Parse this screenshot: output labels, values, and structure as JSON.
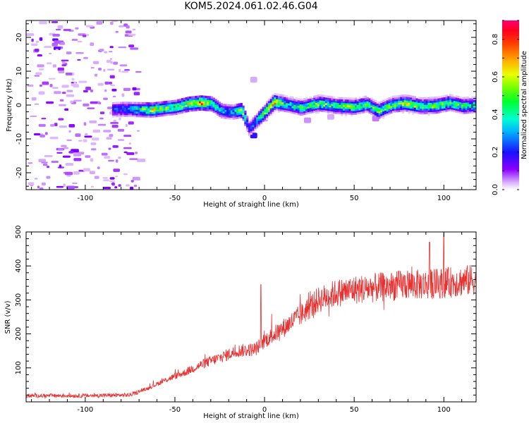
{
  "title": "KOM5.2024.061.02.46.G04",
  "chart_data": [
    {
      "type": "heatmap",
      "xlabel": "Height of straight line (km)",
      "ylabel": "Frequency (Hz)",
      "xlim": [
        -133,
        118
      ],
      "ylim": [
        -25,
        25
      ],
      "x_ticks": [
        -100,
        -50,
        0,
        50,
        100
      ],
      "y_ticks": [
        -20,
        -10,
        0,
        10,
        20
      ],
      "colorbar": {
        "label": "Normalized spectral amplitude",
        "range": [
          0,
          0.9
        ],
        "ticks": [
          0.0,
          0.2,
          0.4,
          0.6,
          0.8
        ]
      },
      "ridge": [
        {
          "x": -85,
          "freq": -1.3,
          "amp": 0.25
        },
        {
          "x": -78,
          "freq": -1.2,
          "amp": 0.3
        },
        {
          "x": -70,
          "freq": -1.3,
          "amp": 0.45
        },
        {
          "x": -63,
          "freq": -1.4,
          "amp": 0.65
        },
        {
          "x": -57,
          "freq": -1.0,
          "amp": 0.55
        },
        {
          "x": -50,
          "freq": -0.6,
          "amp": 0.5
        },
        {
          "x": -43,
          "freq": 0.3,
          "amp": 0.6
        },
        {
          "x": -36,
          "freq": 0.7,
          "amp": 0.85
        },
        {
          "x": -30,
          "freq": 0.4,
          "amp": 0.5
        },
        {
          "x": -24,
          "freq": -1.8,
          "amp": 0.35
        },
        {
          "x": -18,
          "freq": -2.0,
          "amp": 0.3
        },
        {
          "x": -13,
          "freq": -1.5,
          "amp": 0.7
        },
        {
          "x": -9,
          "freq": -7.0,
          "amp": 0.2
        },
        {
          "x": 5,
          "freq": 0.9,
          "amp": 0.75
        },
        {
          "x": 12,
          "freq": 0.2,
          "amp": 0.4
        },
        {
          "x": 20,
          "freq": -0.8,
          "amp": 0.45
        },
        {
          "x": 30,
          "freq": 0.5,
          "amp": 0.55
        },
        {
          "x": 40,
          "freq": -0.3,
          "amp": 0.5
        },
        {
          "x": 50,
          "freq": -0.5,
          "amp": 0.55
        },
        {
          "x": 57,
          "freq": 0.2,
          "amp": 0.45
        },
        {
          "x": 63,
          "freq": -1.8,
          "amp": 0.55
        },
        {
          "x": 71,
          "freq": 0.1,
          "amp": 0.5
        },
        {
          "x": 78,
          "freq": 0.5,
          "amp": 0.6
        },
        {
          "x": 87,
          "freq": -0.4,
          "amp": 0.5
        },
        {
          "x": 95,
          "freq": -0.2,
          "amp": 0.55
        },
        {
          "x": 103,
          "freq": 0.6,
          "amp": 0.5
        },
        {
          "x": 110,
          "freq": -0.3,
          "amp": 0.5
        },
        {
          "x": 117,
          "freq": 0.0,
          "amp": 0.4
        }
      ]
    },
    {
      "type": "line",
      "xlabel": "Height of straight line (km)",
      "ylabel": "SNR (v/v)",
      "xlim": [
        -133,
        118
      ],
      "ylim": [
        0,
        500
      ],
      "x_ticks": [
        -100,
        -50,
        0,
        50,
        100
      ],
      "y_ticks": [
        100,
        200,
        300,
        400,
        500
      ],
      "color": "#e83030",
      "trend": {
        "x": [
          -133,
          -100,
          -75,
          -65,
          -55,
          -45,
          -35,
          -25,
          -15,
          -5,
          0,
          10,
          20,
          30,
          40,
          50,
          60,
          70,
          80,
          90,
          100,
          110,
          118
        ],
        "y": [
          18,
          18,
          20,
          40,
          65,
          85,
          110,
          130,
          150,
          155,
          180,
          215,
          255,
          300,
          320,
          330,
          335,
          340,
          345,
          345,
          350,
          355,
          360
        ]
      },
      "peaks": [
        {
          "x": -2,
          "y": 345
        },
        {
          "x": 100,
          "y": 495
        },
        {
          "x": 92,
          "y": 470
        }
      ]
    }
  ]
}
